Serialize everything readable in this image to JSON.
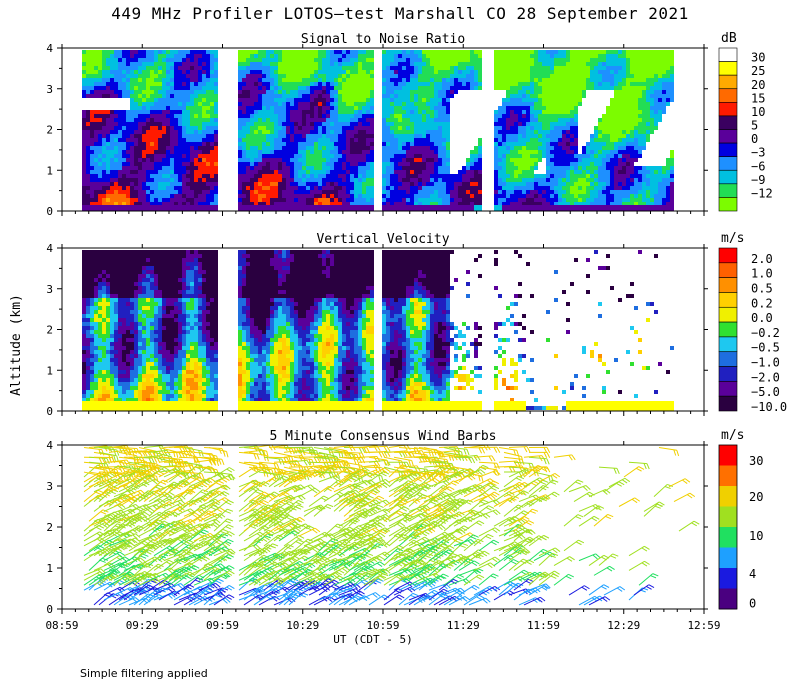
{
  "title": "449 MHz Profiler LOTOS—test Marshall CO 28 September 2021",
  "footnote": "Simple filtering applied",
  "colors": {
    "snr_scale": [
      "#7cfc00",
      "#22dd55",
      "#00c0e0",
      "#1e90ff",
      "#0000e0",
      "#5a009a",
      "#3a0060",
      "#ff1a00",
      "#ff6a00",
      "#ffaa00",
      "#ffff00",
      "#ffffff"
    ],
    "vel_scale": [
      "#2a0040",
      "#5a009a",
      "#2020c0",
      "#1e6ee0",
      "#1ec8f0",
      "#30e030",
      "#f0f000",
      "#ffd000",
      "#ff9000",
      "#ff6000",
      "#ff0000"
    ],
    "wind_scale": [
      "#4a0080",
      "#1a1ae0",
      "#1ea0ff",
      "#20e060",
      "#a0e020",
      "#f0d000",
      "#ff7000",
      "#ff0000"
    ]
  },
  "chart_data": [
    {
      "type": "heatmap",
      "title": "Signal to Noise Ratio",
      "ylabel": "Altitude (km)",
      "ylim": [
        0,
        4
      ],
      "yticks": [
        "0",
        "1",
        "2",
        "3",
        "4"
      ],
      "xlabel": "UT  (CDT - 5)",
      "colorbar": {
        "unit": "dB",
        "labels": [
          "30",
          "25",
          "20",
          "15",
          "10",
          "5",
          "0",
          "−3",
          "−6",
          "−9",
          "−12"
        ]
      },
      "data_gaps": [
        [
          "09:57",
          "10:04"
        ],
        [
          "10:55",
          "10:58"
        ],
        [
          "11:35",
          "11:39"
        ]
      ],
      "data_range": [
        "09:05",
        "12:47"
      ]
    },
    {
      "type": "heatmap",
      "title": "Vertical Velocity",
      "ylabel": "Altitude (km)",
      "ylim": [
        0,
        4
      ],
      "yticks": [
        "0",
        "1",
        "2",
        "3",
        "4"
      ],
      "colorbar": {
        "unit": "m/s",
        "labels": [
          "2.0",
          "1.0",
          "0.5",
          "0.2",
          "0.0",
          "−0.2",
          "−0.5",
          "−1.0",
          "−2.0",
          "−5.0",
          "−10.0"
        ]
      }
    },
    {
      "type": "scatter",
      "title": "5 Minute Consensus Wind Barbs",
      "ylabel": "Altitude (km)",
      "ylim": [
        0,
        4
      ],
      "yticks": [
        "0",
        "1",
        "2",
        "3",
        "4"
      ],
      "colorbar": {
        "unit": "m/s",
        "labels": [
          "30",
          "20",
          "10",
          "4",
          "0"
        ]
      },
      "xlim": [
        "08:59",
        "12:59"
      ],
      "xticks": [
        "08:59",
        "09:29",
        "09:59",
        "10:29",
        "10:59",
        "11:29",
        "11:59",
        "12:29",
        "12:59"
      ]
    }
  ],
  "ylabel_shared": "Altitude (km)"
}
